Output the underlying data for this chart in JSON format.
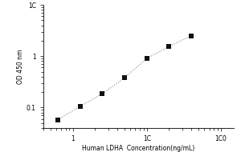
{
  "x_data": [
    0.625,
    1.25,
    2.5,
    5,
    10,
    20,
    40
  ],
  "y_data": [
    0.058,
    0.105,
    0.185,
    0.38,
    0.9,
    1.55,
    2.5
  ],
  "xlabel": "Human LDHA  Concentration(ng/mL)",
  "ylabel": "OD 450 nm",
  "xlim": [
    0.4,
    150
  ],
  "ylim": [
    0.04,
    10
  ],
  "marker_color": "#111111",
  "line_color": "#888888",
  "marker": "s",
  "marker_size": 4,
  "line_style": ":",
  "background_color": "#ffffff",
  "xlabel_fontsize": 5.5,
  "ylabel_fontsize": 5.5,
  "tick_fontsize": 5.5,
  "ytick_labels": {
    "10": "1C",
    "1": "1",
    "0.1": "0.1"
  },
  "xtick_labels": {
    "1": "1",
    "10": "1C",
    "100": "1C0"
  }
}
